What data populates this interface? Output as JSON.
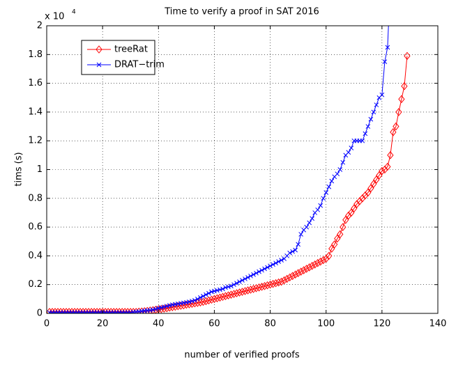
{
  "chart_data": {
    "type": "line",
    "title": "Time to verify a proof in SAT 2016",
    "x_label": "number of verified proofs",
    "y_label": "tims (s)",
    "y_multiplier": {
      "base": "x 10",
      "exponent": "4"
    },
    "xlim": [
      0,
      140
    ],
    "xticks": [
      0,
      20,
      40,
      60,
      80,
      100,
      120,
      140
    ],
    "ylim": [
      0,
      2
    ],
    "yticks": [
      0,
      0.2,
      0.4,
      0.6,
      0.8,
      1,
      1.2,
      1.4,
      1.6,
      1.8,
      2
    ],
    "grid": true,
    "legend": "northwest",
    "series": [
      {
        "name": "treeRat",
        "color": "#ff0000",
        "marker": "diamond",
        "x": [
          1,
          2,
          3,
          4,
          5,
          6,
          7,
          8,
          9,
          10,
          11,
          12,
          13,
          14,
          15,
          16,
          17,
          18,
          19,
          20,
          21,
          22,
          23,
          24,
          25,
          26,
          27,
          28,
          29,
          30,
          31,
          32,
          33,
          34,
          35,
          36,
          37,
          38,
          39,
          40,
          41,
          42,
          43,
          44,
          45,
          46,
          47,
          48,
          49,
          50,
          51,
          52,
          53,
          54,
          55,
          56,
          57,
          58,
          59,
          60,
          61,
          62,
          63,
          64,
          65,
          66,
          67,
          68,
          69,
          70,
          71,
          72,
          73,
          74,
          75,
          76,
          77,
          78,
          79,
          80,
          81,
          82,
          83,
          84,
          85,
          86,
          87,
          88,
          89,
          90,
          91,
          92,
          93,
          94,
          95,
          96,
          97,
          98,
          99,
          100,
          101,
          102,
          103,
          104,
          105,
          106,
          107,
          108,
          109,
          110,
          111,
          112,
          113,
          114,
          115,
          116,
          117,
          118,
          119,
          120,
          121,
          122,
          123,
          124,
          125,
          126,
          127,
          128,
          129
        ],
        "values": [
          0.01,
          0.01,
          0.01,
          0.01,
          0.01,
          0.01,
          0.01,
          0.01,
          0.01,
          0.01,
          0.01,
          0.01,
          0.01,
          0.01,
          0.01,
          0.01,
          0.01,
          0.01,
          0.01,
          0.01,
          0.01,
          0.01,
          0.01,
          0.01,
          0.01,
          0.01,
          0.01,
          0.01,
          0.01,
          0.01,
          0.01,
          0.01,
          0.012,
          0.013,
          0.015,
          0.017,
          0.02,
          0.022,
          0.025,
          0.028,
          0.03,
          0.033,
          0.036,
          0.04,
          0.043,
          0.046,
          0.05,
          0.053,
          0.056,
          0.06,
          0.063,
          0.066,
          0.07,
          0.073,
          0.076,
          0.08,
          0.085,
          0.09,
          0.095,
          0.1,
          0.105,
          0.11,
          0.115,
          0.12,
          0.125,
          0.13,
          0.135,
          0.14,
          0.145,
          0.15,
          0.155,
          0.16,
          0.165,
          0.17,
          0.175,
          0.18,
          0.185,
          0.19,
          0.195,
          0.2,
          0.205,
          0.21,
          0.215,
          0.22,
          0.23,
          0.24,
          0.25,
          0.26,
          0.27,
          0.28,
          0.29,
          0.3,
          0.31,
          0.32,
          0.33,
          0.34,
          0.35,
          0.36,
          0.37,
          0.38,
          0.4,
          0.45,
          0.48,
          0.52,
          0.55,
          0.6,
          0.65,
          0.68,
          0.7,
          0.73,
          0.76,
          0.78,
          0.8,
          0.82,
          0.84,
          0.87,
          0.9,
          0.93,
          0.96,
          0.99,
          1.0,
          1.02,
          1.1,
          1.26,
          1.3,
          1.4,
          1.49,
          1.58,
          1.79
        ]
      },
      {
        "name": "DRAT−trim",
        "color": "#0000ff",
        "marker": "x",
        "x": [
          1,
          2,
          3,
          4,
          5,
          6,
          7,
          8,
          9,
          10,
          11,
          12,
          13,
          14,
          15,
          16,
          17,
          18,
          19,
          20,
          21,
          22,
          23,
          24,
          25,
          26,
          27,
          28,
          29,
          30,
          31,
          32,
          33,
          34,
          35,
          36,
          37,
          38,
          39,
          40,
          41,
          42,
          43,
          44,
          45,
          46,
          47,
          48,
          49,
          50,
          51,
          52,
          53,
          54,
          55,
          56,
          57,
          58,
          59,
          60,
          61,
          62,
          63,
          64,
          65,
          66,
          67,
          68,
          69,
          70,
          71,
          72,
          73,
          74,
          75,
          76,
          77,
          78,
          79,
          80,
          81,
          82,
          83,
          84,
          85,
          86,
          87,
          88,
          89,
          90,
          91,
          92,
          93,
          94,
          95,
          96,
          97,
          98,
          99,
          100,
          101,
          102,
          103,
          104,
          105,
          106,
          107,
          108,
          109,
          110,
          111,
          112,
          113,
          114,
          115,
          116,
          117,
          118,
          119,
          120,
          121,
          122,
          123
        ],
        "values": [
          0.005,
          0.005,
          0.005,
          0.005,
          0.005,
          0.005,
          0.005,
          0.005,
          0.005,
          0.005,
          0.005,
          0.005,
          0.005,
          0.005,
          0.005,
          0.005,
          0.005,
          0.005,
          0.005,
          0.005,
          0.005,
          0.005,
          0.005,
          0.005,
          0.005,
          0.005,
          0.005,
          0.005,
          0.005,
          0.005,
          0.008,
          0.01,
          0.012,
          0.015,
          0.018,
          0.02,
          0.022,
          0.025,
          0.03,
          0.035,
          0.04,
          0.045,
          0.05,
          0.055,
          0.06,
          0.063,
          0.066,
          0.07,
          0.073,
          0.076,
          0.08,
          0.085,
          0.09,
          0.1,
          0.11,
          0.12,
          0.13,
          0.14,
          0.15,
          0.155,
          0.16,
          0.165,
          0.17,
          0.18,
          0.185,
          0.19,
          0.2,
          0.21,
          0.22,
          0.23,
          0.24,
          0.25,
          0.26,
          0.27,
          0.28,
          0.29,
          0.3,
          0.31,
          0.32,
          0.33,
          0.34,
          0.35,
          0.36,
          0.37,
          0.38,
          0.4,
          0.42,
          0.43,
          0.44,
          0.48,
          0.55,
          0.58,
          0.6,
          0.63,
          0.66,
          0.7,
          0.72,
          0.75,
          0.8,
          0.84,
          0.88,
          0.92,
          0.95,
          0.97,
          1.0,
          1.05,
          1.1,
          1.12,
          1.15,
          1.2,
          1.2,
          1.2,
          1.2,
          1.25,
          1.3,
          1.35,
          1.4,
          1.45,
          1.5,
          1.52,
          1.75,
          1.85,
          2.3
        ]
      }
    ]
  }
}
